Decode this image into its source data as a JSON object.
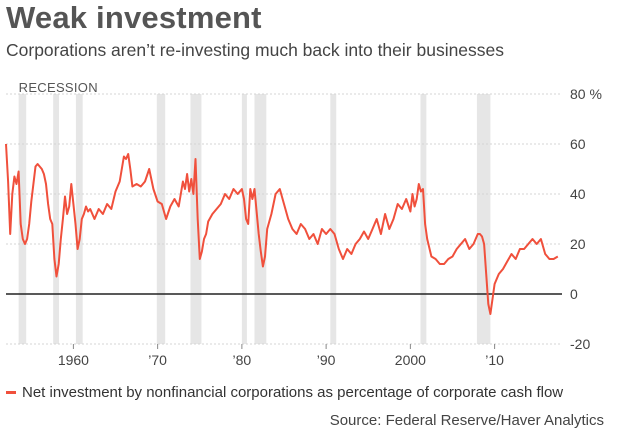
{
  "title": "Weak investment",
  "subtitle": "Corporations aren’t re-investing much back into their businesses",
  "legend_label": "Net investment by nonfinancial corporations as percentage of corporate cash flow",
  "source": "Source: Federal Reserve/Haver Analytics",
  "recession_label": "RECESSION",
  "colors": {
    "line": "#f0503c",
    "recession": "#e6e6e6",
    "zero": "#222222",
    "grid": "#d4d4d4"
  },
  "chart_data": {
    "type": "line",
    "title": "Weak investment",
    "subtitle": "Corporations aren’t re-investing much back into their businesses",
    "xlabel": "",
    "ylabel": "",
    "xlim": [
      1952,
      2018
    ],
    "ylim": [
      -20,
      80
    ],
    "x_ticks": [
      {
        "value": 1960,
        "label": "1960"
      },
      {
        "value": 1970,
        "label": "’70"
      },
      {
        "value": 1980,
        "label": "’80"
      },
      {
        "value": 1990,
        "label": "’90"
      },
      {
        "value": 2000,
        "label": "2000"
      },
      {
        "value": 2010,
        "label": "’10"
      }
    ],
    "y_ticks": [
      {
        "value": 80,
        "label": "80 %"
      },
      {
        "value": 60,
        "label": "60"
      },
      {
        "value": 40,
        "label": "40"
      },
      {
        "value": 20,
        "label": "20"
      },
      {
        "value": 0,
        "label": "0"
      },
      {
        "value": -20,
        "label": "-20"
      }
    ],
    "grid": true,
    "legend_position": "bottom",
    "recessions": [
      [
        1953.5,
        1954.4
      ],
      [
        1957.6,
        1958.3
      ],
      [
        1960.3,
        1961.1
      ],
      [
        1969.9,
        1970.9
      ],
      [
        1973.9,
        1975.2
      ],
      [
        1980.0,
        1980.6
      ],
      [
        1981.5,
        1982.9
      ],
      [
        1990.5,
        1991.2
      ],
      [
        2001.2,
        2001.9
      ],
      [
        2007.9,
        2009.5
      ]
    ],
    "series": [
      {
        "name": "Net investment by nonfinancial corporations as percentage of corporate cash flow",
        "x": [
          1952.0,
          1952.25,
          1952.5,
          1952.75,
          1953.0,
          1953.25,
          1953.5,
          1953.75,
          1954.0,
          1954.25,
          1954.5,
          1954.75,
          1955.0,
          1955.25,
          1955.5,
          1955.75,
          1956.0,
          1956.25,
          1956.5,
          1956.75,
          1957.0,
          1957.25,
          1957.5,
          1957.75,
          1958.0,
          1958.25,
          1958.5,
          1958.75,
          1959.0,
          1959.25,
          1959.5,
          1959.75,
          1960.0,
          1960.25,
          1960.5,
          1960.75,
          1961.0,
          1961.25,
          1961.5,
          1961.75,
          1962.0,
          1962.5,
          1963.0,
          1963.5,
          1964.0,
          1964.5,
          1965.0,
          1965.5,
          1966.0,
          1966.25,
          1966.5,
          1966.75,
          1967.0,
          1967.5,
          1968.0,
          1968.5,
          1969.0,
          1969.5,
          1970.0,
          1970.5,
          1971.0,
          1971.5,
          1972.0,
          1972.5,
          1973.0,
          1973.25,
          1973.5,
          1973.75,
          1974.0,
          1974.25,
          1974.5,
          1974.75,
          1975.0,
          1975.25,
          1975.5,
          1975.75,
          1976.0,
          1976.5,
          1977.0,
          1977.5,
          1978.0,
          1978.5,
          1979.0,
          1979.5,
          1980.0,
          1980.25,
          1980.5,
          1980.75,
          1981.0,
          1981.25,
          1981.5,
          1981.75,
          1982.0,
          1982.25,
          1982.5,
          1982.75,
          1983.0,
          1983.5,
          1984.0,
          1984.5,
          1985.0,
          1985.5,
          1986.0,
          1986.5,
          1987.0,
          1987.5,
          1988.0,
          1988.5,
          1989.0,
          1989.5,
          1990.0,
          1990.5,
          1991.0,
          1991.5,
          1992.0,
          1992.5,
          1993.0,
          1993.5,
          1994.0,
          1994.5,
          1995.0,
          1995.5,
          1996.0,
          1996.5,
          1997.0,
          1997.5,
          1998.0,
          1998.5,
          1999.0,
          1999.5,
          2000.0,
          2000.25,
          2000.5,
          2000.75,
          2001.0,
          2001.25,
          2001.5,
          2001.75,
          2002.0,
          2002.5,
          2003.0,
          2003.5,
          2004.0,
          2004.5,
          2005.0,
          2005.5,
          2006.0,
          2006.5,
          2007.0,
          2007.5,
          2008.0,
          2008.25,
          2008.5,
          2008.75,
          2009.0,
          2009.25,
          2009.5,
          2009.75,
          2010.0,
          2010.5,
          2011.0,
          2011.5,
          2012.0,
          2012.5,
          2013.0,
          2013.5,
          2014.0,
          2014.5,
          2015.0,
          2015.5,
          2016.0,
          2016.5,
          2017.0,
          2017.5
        ],
        "values": [
          60,
          45,
          24,
          40,
          47,
          44,
          49,
          28,
          22,
          20,
          22,
          28,
          37,
          44,
          51,
          52,
          51,
          50,
          48,
          44,
          36,
          30,
          28,
          14,
          7,
          12,
          22,
          30,
          39,
          32,
          35,
          44,
          36,
          28,
          18,
          22,
          30,
          32,
          35,
          33,
          34,
          30,
          34,
          32,
          36,
          34,
          41,
          45,
          55,
          54,
          56,
          50,
          43,
          44,
          43,
          45,
          50,
          42,
          37,
          36,
          30,
          35,
          38,
          35,
          45,
          42,
          48,
          41,
          46,
          40,
          54,
          30,
          14,
          17,
          22,
          24,
          29,
          32,
          34,
          36,
          40,
          38,
          42,
          40,
          42,
          38,
          30,
          28,
          42,
          38,
          42,
          33,
          24,
          17,
          11,
          15,
          26,
          32,
          40,
          42,
          36,
          30,
          26,
          24,
          28,
          26,
          22,
          24,
          20,
          26,
          24,
          26,
          24,
          18,
          14,
          18,
          16,
          20,
          22,
          25,
          22,
          26,
          30,
          24,
          32,
          26,
          30,
          36,
          34,
          38,
          33,
          40,
          35,
          38,
          44,
          41,
          42,
          28,
          22,
          15,
          14,
          12,
          12,
          14,
          15,
          18,
          20,
          22,
          18,
          20,
          24,
          24,
          23,
          20,
          8,
          -4,
          -8,
          -2,
          4,
          8,
          10,
          13,
          16,
          14,
          18,
          18,
          20,
          22,
          20,
          22,
          16,
          14,
          14,
          15
        ]
      }
    ]
  }
}
